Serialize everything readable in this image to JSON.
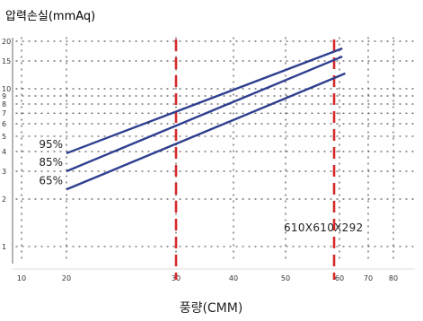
{
  "chart_data": {
    "type": "line",
    "title": "",
    "ylabel": "압력손실(mmAq)",
    "xlabel": "풍량(CMM)",
    "y_scale": "log",
    "ylim": [
      0.8,
      20
    ],
    "y_ticks": [
      1,
      2,
      3,
      4,
      5,
      6,
      7,
      8,
      9,
      10,
      15,
      20
    ],
    "x_ticks": [
      10,
      20,
      30,
      40,
      50,
      60,
      70,
      80
    ],
    "grid": true,
    "series": [
      {
        "name": "95%",
        "color": "#2e3f8f",
        "x": [
          20,
          61
        ],
        "y": [
          3.9,
          18.0
        ]
      },
      {
        "name": "85%",
        "color": "#2e3f8f",
        "x": [
          20,
          61
        ],
        "y": [
          3.0,
          16.0
        ]
      },
      {
        "name": "65%",
        "color": "#2e3f8f",
        "x": [
          20,
          62
        ],
        "y": [
          2.3,
          12.5
        ]
      }
    ],
    "reference_lines": [
      {
        "x": 30,
        "color": "#d62a2a",
        "style": "dashed"
      },
      {
        "x": 59,
        "color": "#d62a2a",
        "style": "dashed"
      }
    ],
    "annotations": [
      "610X610X292"
    ]
  }
}
